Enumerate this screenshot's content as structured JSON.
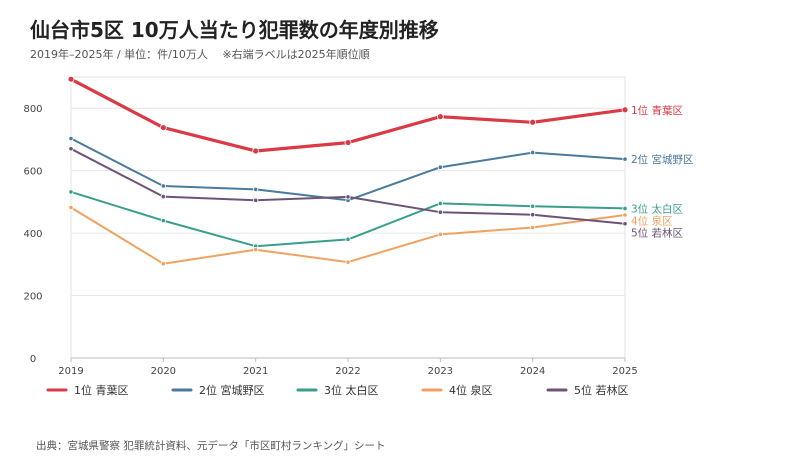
{
  "header": {
    "title": "仙台市5区 10万人当たり犯罪数の年度別推移",
    "subtitle": "2019年–2025年 / 単位：件/10万人　 ※右端ラベルは2025年順位順"
  },
  "footer": {
    "source": "出典：宮城県警察 犯罪統計資料、元データ「市区町村ランキング」シート"
  },
  "chart_data": {
    "type": "line",
    "title": "仙台市5区 10万人当たり犯罪数の年度別推移",
    "subtitle": "2019年–2025年 / 単位：件/10万人　 ※右端ラベルは2025年順位順",
    "xlabel": "",
    "ylabel": "",
    "x": [
      "2019",
      "2020",
      "2021",
      "2022",
      "2023",
      "2024",
      "2025"
    ],
    "yticks": [
      0,
      200,
      400,
      600,
      800
    ],
    "ylim": [
      0,
      900
    ],
    "grid": "horizontal",
    "legend": "bottom",
    "series": [
      {
        "name": "1位 青葉区",
        "color": "#d93a45",
        "values": [
          893,
          738,
          663,
          690,
          773,
          755,
          795
        ]
      },
      {
        "name": "2位 宮城野区",
        "color": "#4a7a9c",
        "values": [
          703,
          551,
          540,
          505,
          611,
          658,
          637
        ]
      },
      {
        "name": "3位 太白区",
        "color": "#3a9e8c",
        "values": [
          532,
          440,
          358,
          380,
          495,
          486,
          479
        ]
      },
      {
        "name": "4位 泉区",
        "color": "#f0a262",
        "values": [
          482,
          302,
          347,
          307,
          396,
          418,
          458
        ]
      },
      {
        "name": "5位 若林区",
        "color": "#6d5477",
        "values": [
          670,
          517,
          505,
          516,
          467,
          459,
          430
        ]
      }
    ]
  }
}
